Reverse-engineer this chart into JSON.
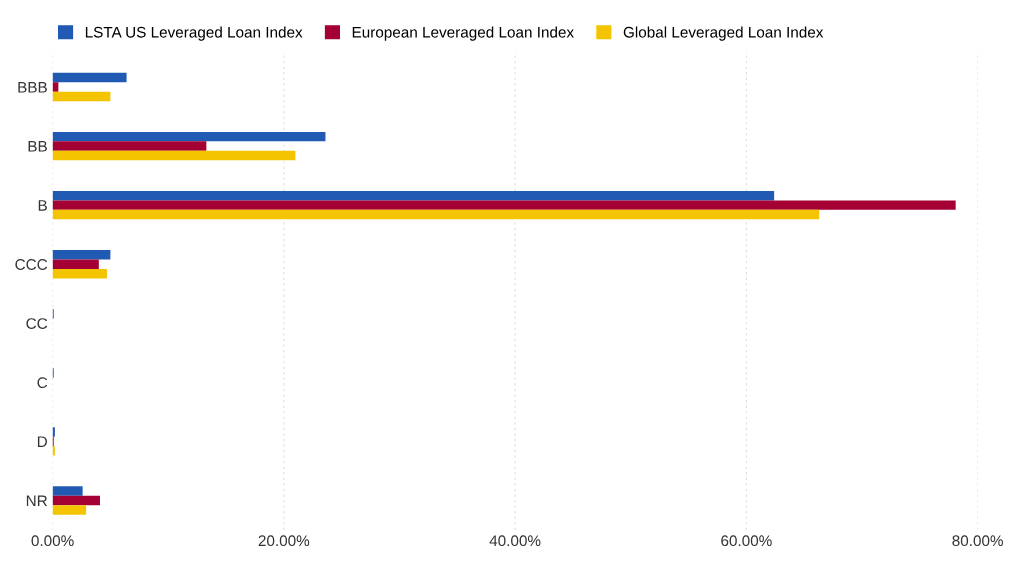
{
  "chart_data": {
    "type": "bar",
    "orientation": "horizontal",
    "categories": [
      "BBB",
      "BB",
      "B",
      "CCC",
      "CC",
      "C",
      "D",
      "NR"
    ],
    "series": [
      {
        "name": "LSTA US Leveraged Loan Index",
        "color": "#205ab2",
        "values": [
          6.4,
          23.6,
          62.4,
          5.0,
          0.1,
          0.1,
          0.2,
          2.6
        ]
      },
      {
        "name": "European Leveraged Loan Index",
        "color": "#a50034",
        "values": [
          0.5,
          13.3,
          78.1,
          4.0,
          0,
          0,
          0.1,
          4.1
        ]
      },
      {
        "name": "Global Leveraged Loan Index",
        "color": "#f5c400",
        "values": [
          5.0,
          21.0,
          66.3,
          4.7,
          0,
          0,
          0.2,
          2.9
        ]
      }
    ],
    "xlim": [
      0,
      80
    ],
    "xticks": [
      {
        "value": 0,
        "label": "0.00%"
      },
      {
        "value": 20,
        "label": "20.00%"
      },
      {
        "value": 40,
        "label": "40.00%"
      },
      {
        "value": 60,
        "label": "60.00%"
      },
      {
        "value": 80,
        "label": "80.00%"
      }
    ],
    "grid": "x",
    "legend": "top left"
  }
}
